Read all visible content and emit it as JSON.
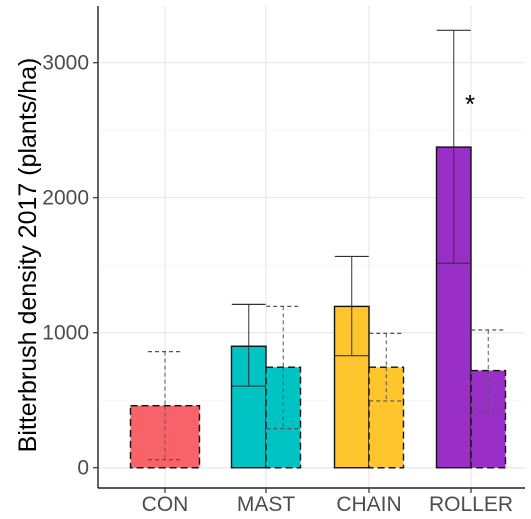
{
  "chart_data": {
    "type": "bar",
    "title": "",
    "xlabel": "",
    "ylabel": "Bitterbrush density 2017 (plants/ha)",
    "categories": [
      "CON",
      "MAST",
      "CHAIN",
      "ROLLER"
    ],
    "yticks": [
      0,
      1000,
      2000,
      3000
    ],
    "ylim": [
      -150,
      3420
    ],
    "grid": true,
    "legend": "none",
    "series": [
      {
        "values": [
          null,
          900,
          1195,
          2375
        ],
        "lower": [
          null,
          605,
          830,
          1515
        ],
        "upper": [
          null,
          1210,
          1565,
          3240
        ],
        "style": "solid"
      },
      {
        "values": [
          460,
          745,
          745,
          720
        ],
        "lower": [
          60,
          290,
          495,
          420
        ],
        "upper": [
          860,
          1195,
          995,
          1020
        ],
        "style": "dashed"
      }
    ],
    "annotations": [
      {
        "text": "*",
        "category": "ROLLER",
        "y": 2700
      }
    ],
    "colors": {
      "CON": "#F8636A",
      "MAST": "#00C4C4",
      "CHAIN": "#FFC52C",
      "ROLLER": "#9A2FC8",
      "grid": "#ebebeb",
      "axis": "#4d4d4d",
      "outline": "#111111"
    }
  }
}
